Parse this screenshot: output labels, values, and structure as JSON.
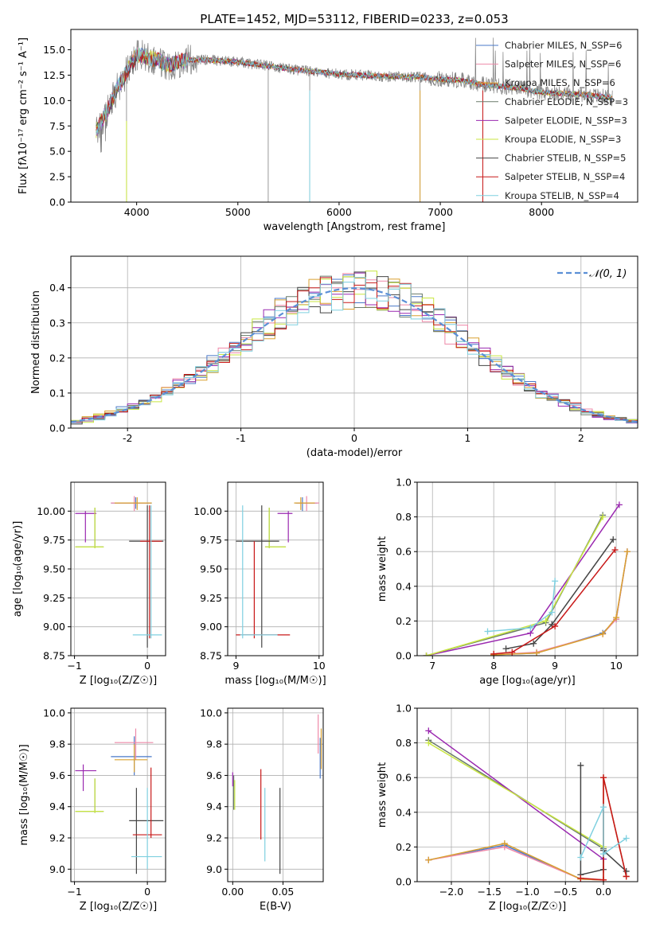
{
  "figure_title": "PLATE=1452, MJD=53112, FIBERID=0233, z=0.053",
  "colors": {
    "Chabrier MILES": "#4a78c8",
    "Salpeter MILES": "#ee88a8",
    "Kroupa MILES": "#d9a030",
    "Chabrier ELODIE": "#6a7a6a",
    "Salpeter ELODIE": "#9a28b0",
    "Kroupa ELODIE": "#c8e640",
    "Chabrier STELIB": "#444444",
    "Salpeter STELIB": "#c81818",
    "Kroupa STELIB": "#7fd0e0",
    "normal_fit": "#5b8fd6",
    "observed": "#808080"
  },
  "chart_data": [
    {
      "id": "spectrum",
      "type": "line",
      "title": "PLATE=1452, MJD=53112, FIBERID=0233, z=0.053",
      "xlabel": "wavelength [Angstrom, rest frame]",
      "ylabel": "Flux [fλ10⁻¹⁷ erg cm⁻² s⁻¹ A⁻¹]",
      "xlim": [
        3350,
        8950
      ],
      "ylim": [
        0,
        17
      ],
      "xticks": [
        4000,
        5000,
        6000,
        7000,
        8000
      ],
      "yticks": [
        0.0,
        2.5,
        5.0,
        7.5,
        10.0,
        12.5,
        15.0
      ],
      "ytick_labels": [
        "0.0",
        "2.5",
        "5.0",
        "7.5",
        "10.0",
        "12.5",
        "15.0"
      ],
      "grid": false,
      "legend_position": "top-right",
      "legend": [
        {
          "label": "Chabrier MILES, N_SSP=6",
          "model": "Chabrier MILES"
        },
        {
          "label": "Salpeter MILES, N_SSP=6",
          "model": "Salpeter MILES"
        },
        {
          "label": "Kroupa MILES, N_SSP=6",
          "model": "Kroupa MILES"
        },
        {
          "label": "Chabrier ELODIE, N_SSP=3",
          "model": "Chabrier ELODIE"
        },
        {
          "label": "Salpeter ELODIE, N_SSP=3",
          "model": "Salpeter ELODIE"
        },
        {
          "label": "Kroupa ELODIE, N_SSP=3",
          "model": "Kroupa ELODIE"
        },
        {
          "label": "Chabrier STELIB, N_SSP=5",
          "model": "Chabrier STELIB"
        },
        {
          "label": "Salpeter STELIB, N_SSP=4",
          "model": "Salpeter STELIB"
        },
        {
          "label": "Kroupa STELIB, N_SSP=4",
          "model": "Kroupa STELIB"
        }
      ],
      "continuum_x": [
        3600,
        3700,
        3800,
        3900,
        4000,
        4100,
        4200,
        4300,
        4500,
        4700,
        5000,
        5300,
        5600,
        6000,
        6400,
        6800,
        7000,
        7200,
        7400,
        7600,
        7800,
        8000,
        8200,
        8400,
        8600,
        8700
      ],
      "continuum_y": [
        7.0,
        8.8,
        11.0,
        12.8,
        14.5,
        14.3,
        14.0,
        13.5,
        14.0,
        14.0,
        13.8,
        13.4,
        13.0,
        12.6,
        12.4,
        12.3,
        12.1,
        12.0,
        11.6,
        11.4,
        11.2,
        10.8,
        10.7,
        10.6,
        10.4,
        10.2
      ]
    },
    {
      "id": "residuals",
      "type": "histogram",
      "xlabel": "(data-model)/error",
      "ylabel": "Normed distribution",
      "xlim": [
        -2.5,
        2.5
      ],
      "ylim": [
        0,
        0.49
      ],
      "xticks": [
        -2,
        -1,
        0,
        1,
        2
      ],
      "yticks": [
        0.0,
        0.1,
        0.2,
        0.3,
        0.4
      ],
      "ytick_labels": [
        "0.0",
        "0.1",
        "0.2",
        "0.3",
        "0.4"
      ],
      "grid": true,
      "legend_position": "top-right",
      "legend": [
        {
          "label": "𝒩(0, 1)"
        }
      ],
      "bin_width": 0.1
    },
    {
      "id": "age-vs-Z",
      "type": "errorbar",
      "xlabel": "Z [log₁₀(Z/Z☉)]",
      "ylabel": "age  [log₁₀(age/yr)]",
      "xlim": [
        -1.05,
        0.25
      ],
      "ylim": [
        8.75,
        10.25
      ],
      "xticks": [
        -1,
        0
      ],
      "xtick_labels": [
        "−1",
        "0"
      ],
      "yticks": [
        8.75,
        9.0,
        9.25,
        9.5,
        9.75,
        10.0
      ],
      "ytick_labels": [
        "8.75",
        "9.00",
        "9.25",
        "9.50",
        "9.75",
        "10.00"
      ],
      "grid": true,
      "points": [
        {
          "model": "Chabrier MILES",
          "x": -0.16,
          "xlo": -0.5,
          "xhi": 0.06,
          "y": 10.07,
          "ylo": 10.02,
          "yhi": 10.12
        },
        {
          "model": "Salpeter MILES",
          "x": -0.18,
          "xlo": -0.5,
          "xhi": 0.05,
          "y": 10.07,
          "ylo": 10.0,
          "yhi": 10.13
        },
        {
          "model": "Kroupa MILES",
          "x": -0.14,
          "xlo": -0.45,
          "xhi": 0.06,
          "y": 10.07,
          "ylo": 10.01,
          "yhi": 10.12
        },
        {
          "model": "Chabrier ELODIE",
          "x": -0.72,
          "xlo": -0.99,
          "xhi": -0.6,
          "y": 9.69,
          "ylo": 9.68,
          "yhi": 10.03
        },
        {
          "model": "Salpeter ELODIE",
          "x": -0.85,
          "xlo": -0.99,
          "xhi": -0.7,
          "y": 9.98,
          "ylo": 9.73,
          "yhi": 10.0
        },
        {
          "model": "Kroupa ELODIE",
          "x": -0.72,
          "xlo": -0.99,
          "xhi": -0.6,
          "y": 9.69,
          "ylo": 9.68,
          "yhi": 10.03
        },
        {
          "model": "Chabrier STELIB",
          "x": 0.0,
          "xlo": -0.25,
          "xhi": 0.22,
          "y": 9.74,
          "ylo": 8.82,
          "yhi": 10.05
        },
        {
          "model": "Salpeter STELIB",
          "x": 0.03,
          "xlo": -0.1,
          "xhi": 0.2,
          "y": 9.74,
          "ylo": 8.9,
          "yhi": 10.05
        },
        {
          "model": "Kroupa STELIB",
          "x": 0.05,
          "xlo": -0.2,
          "xhi": 0.2,
          "y": 8.93,
          "ylo": 8.9,
          "yhi": 10.05
        }
      ]
    },
    {
      "id": "age-vs-mass",
      "type": "errorbar",
      "xlabel": "mass [log₁₀(M/M☉)]",
      "ylabel": "",
      "xlim": [
        8.9,
        10.05
      ],
      "ylim": [
        8.75,
        10.25
      ],
      "xticks": [
        9,
        10
      ],
      "xtick_labels": [
        "9",
        "10"
      ],
      "yticks": [
        8.75,
        9.0,
        9.25,
        9.5,
        9.75,
        10.0
      ],
      "ytick_labels": [
        "8.75",
        "9.00",
        "9.25",
        "9.50",
        "9.75",
        "10.00"
      ],
      "grid": true,
      "points": [
        {
          "model": "Chabrier MILES",
          "x": 9.8,
          "xlo": 9.72,
          "xhi": 9.98,
          "y": 10.07,
          "ylo": 10.0,
          "yhi": 10.12
        },
        {
          "model": "Salpeter MILES",
          "x": 9.85,
          "xlo": 9.74,
          "xhi": 10.0,
          "y": 10.07,
          "ylo": 10.0,
          "yhi": 10.13
        },
        {
          "model": "Kroupa MILES",
          "x": 9.78,
          "xlo": 9.7,
          "xhi": 9.95,
          "y": 10.07,
          "ylo": 10.01,
          "yhi": 10.12
        },
        {
          "model": "Chabrier ELODIE",
          "x": 9.4,
          "xlo": 9.35,
          "xhi": 9.6,
          "y": 9.69,
          "ylo": 9.68,
          "yhi": 10.03
        },
        {
          "model": "Salpeter ELODIE",
          "x": 9.63,
          "xlo": 9.5,
          "xhi": 9.68,
          "y": 9.98,
          "ylo": 9.73,
          "yhi": 10.0
        },
        {
          "model": "Kroupa ELODIE",
          "x": 9.4,
          "xlo": 9.35,
          "xhi": 9.6,
          "y": 9.69,
          "ylo": 9.68,
          "yhi": 10.03
        },
        {
          "model": "Chabrier STELIB",
          "x": 9.31,
          "xlo": 9.0,
          "xhi": 9.52,
          "y": 9.74,
          "ylo": 8.82,
          "yhi": 10.05
        },
        {
          "model": "Salpeter STELIB",
          "x": 9.22,
          "xlo": 9.0,
          "xhi": 9.65,
          "y": 8.93,
          "ylo": 8.9,
          "yhi": 9.74
        },
        {
          "model": "Kroupa STELIB",
          "x": 9.08,
          "xlo": 9.05,
          "xhi": 9.5,
          "y": 8.93,
          "ylo": 8.9,
          "yhi": 10.05
        }
      ]
    },
    {
      "id": "massweight-vs-age",
      "type": "line",
      "xlabel": "age  [log₁₀(age/yr)]",
      "ylabel": "mass weight",
      "xlim": [
        6.75,
        10.35
      ],
      "ylim": [
        0,
        1
      ],
      "xticks": [
        7,
        8,
        9,
        10
      ],
      "yticks": [
        0.0,
        0.2,
        0.4,
        0.6,
        0.8,
        1.0
      ],
      "ytick_labels": [
        "0.0",
        "0.2",
        "0.4",
        "0.6",
        "0.8",
        "1.0"
      ],
      "grid": true,
      "series": [
        {
          "model": "Chabrier MILES",
          "x": [
            8.0,
            8.7,
            9.78,
            10.0,
            10.18
          ],
          "y": [
            0.005,
            0.015,
            0.13,
            0.21,
            0.6
          ]
        },
        {
          "model": "Salpeter MILES",
          "x": [
            8.0,
            8.7,
            9.78,
            10.0,
            10.18
          ],
          "y": [
            0.005,
            0.02,
            0.125,
            0.21,
            0.6
          ]
        },
        {
          "model": "Kroupa MILES",
          "x": [
            8.0,
            8.7,
            9.78,
            10.0,
            10.18
          ],
          "y": [
            0.005,
            0.015,
            0.125,
            0.22,
            0.6
          ]
        },
        {
          "model": "Chabrier ELODIE",
          "x": [
            6.9,
            8.85,
            9.78
          ],
          "y": [
            0.0,
            0.19,
            0.81
          ]
        },
        {
          "model": "Salpeter ELODIE",
          "x": [
            6.9,
            8.6,
            10.05
          ],
          "y": [
            0.0,
            0.13,
            0.87
          ]
        },
        {
          "model": "Kroupa ELODIE",
          "x": [
            6.9,
            8.85,
            9.78
          ],
          "y": [
            0.0,
            0.2,
            0.8
          ]
        },
        {
          "model": "Chabrier STELIB",
          "x": [
            8.2,
            8.65,
            8.95,
            9.95
          ],
          "y": [
            0.04,
            0.07,
            0.18,
            0.67
          ]
        },
        {
          "model": "Salpeter STELIB",
          "x": [
            8.0,
            8.3,
            9.0,
            9.98
          ],
          "y": [
            0.01,
            0.02,
            0.17,
            0.61
          ]
        },
        {
          "model": "Kroupa STELIB",
          "x": [
            7.9,
            8.6,
            8.95,
            9.0
          ],
          "y": [
            0.14,
            0.16,
            0.25,
            0.43
          ]
        }
      ]
    },
    {
      "id": "mass-vs-Z",
      "type": "errorbar",
      "xlabel": "Z [log₁₀(Z/Z☉)]",
      "ylabel": "mass [log₁₀(M/M☉)]",
      "xlim": [
        -1.05,
        0.25
      ],
      "ylim": [
        8.92,
        10.03
      ],
      "xticks": [
        -1,
        0
      ],
      "xtick_labels": [
        "−1",
        "0"
      ],
      "yticks": [
        9.0,
        9.2,
        9.4,
        9.6,
        9.8,
        10.0
      ],
      "ytick_labels": [
        "9.0",
        "9.2",
        "9.4",
        "9.6",
        "9.8",
        "10.0"
      ],
      "grid": true,
      "points": [
        {
          "model": "Chabrier MILES",
          "x": -0.18,
          "xlo": -0.5,
          "xhi": 0.06,
          "y": 9.72,
          "ylo": 9.6,
          "yhi": 9.85
        },
        {
          "model": "Salpeter MILES",
          "x": -0.16,
          "xlo": -0.45,
          "xhi": 0.08,
          "y": 9.81,
          "ylo": 9.7,
          "yhi": 9.9
        },
        {
          "model": "Kroupa MILES",
          "x": -0.18,
          "xlo": -0.45,
          "xhi": 0.0,
          "y": 9.7,
          "ylo": 9.62,
          "yhi": 9.8
        },
        {
          "model": "Chabrier ELODIE",
          "x": -0.72,
          "xlo": -0.99,
          "xhi": -0.6,
          "y": 9.37,
          "ylo": 9.36,
          "yhi": 9.58
        },
        {
          "model": "Salpeter ELODIE",
          "x": -0.88,
          "xlo": -0.99,
          "xhi": -0.7,
          "y": 9.63,
          "ylo": 9.5,
          "yhi": 9.67
        },
        {
          "model": "Kroupa ELODIE",
          "x": -0.72,
          "xlo": -0.99,
          "xhi": -0.6,
          "y": 9.37,
          "ylo": 9.36,
          "yhi": 9.58
        },
        {
          "model": "Chabrier STELIB",
          "x": -0.15,
          "xlo": -0.25,
          "xhi": 0.22,
          "y": 9.31,
          "ylo": 8.97,
          "yhi": 9.52
        },
        {
          "model": "Salpeter STELIB",
          "x": 0.05,
          "xlo": -0.2,
          "xhi": 0.2,
          "y": 9.22,
          "ylo": 9.2,
          "yhi": 9.65
        },
        {
          "model": "Kroupa STELIB",
          "x": 0.0,
          "xlo": -0.22,
          "xhi": 0.2,
          "y": 9.08,
          "ylo": 9.0,
          "yhi": 9.52
        }
      ]
    },
    {
      "id": "mass-vs-ebv",
      "type": "errorbar",
      "xlabel": "E(B-V)",
      "ylabel": "",
      "xlim": [
        -0.005,
        0.09
      ],
      "ylim": [
        8.92,
        10.03
      ],
      "xticks": [
        0.0,
        0.05
      ],
      "xtick_labels": [
        "0.00",
        "0.05"
      ],
      "yticks": [
        9.0,
        9.2,
        9.4,
        9.6,
        9.8,
        10.0
      ],
      "ytick_labels": [
        "9.0",
        "9.2",
        "9.4",
        "9.6",
        "9.8",
        "10.0"
      ],
      "grid": true,
      "points": [
        {
          "model": "Chabrier MILES",
          "x": 0.087,
          "xlo": 0.087,
          "xhi": 0.087,
          "y": 9.7,
          "ylo": 9.58,
          "yhi": 9.84
        },
        {
          "model": "Salpeter MILES",
          "x": 0.085,
          "xlo": 0.085,
          "xhi": 0.085,
          "y": 9.86,
          "ylo": 9.74,
          "yhi": 9.99
        },
        {
          "model": "Kroupa MILES",
          "x": 0.088,
          "xlo": 0.088,
          "xhi": 0.088,
          "y": 9.8,
          "ylo": 9.64,
          "yhi": 9.9
        },
        {
          "model": "Chabrier ELODIE",
          "x": 0.001,
          "xlo": 0.001,
          "xhi": 0.001,
          "y": 9.5,
          "ylo": 9.38,
          "yhi": 9.6
        },
        {
          "model": "Salpeter ELODIE",
          "x": 0.0,
          "xlo": 0.0,
          "xhi": 0.0,
          "y": 9.58,
          "ylo": 9.53,
          "yhi": 9.62
        },
        {
          "model": "Kroupa ELODIE",
          "x": 0.002,
          "xlo": 0.002,
          "xhi": 0.002,
          "y": 9.47,
          "ylo": 9.38,
          "yhi": 9.57
        },
        {
          "model": "Chabrier STELIB",
          "x": 0.047,
          "xlo": 0.047,
          "xhi": 0.047,
          "y": 9.25,
          "ylo": 8.97,
          "yhi": 9.52
        },
        {
          "model": "Salpeter STELIB",
          "x": 0.028,
          "xlo": 0.028,
          "xhi": 0.028,
          "y": 9.42,
          "ylo": 9.19,
          "yhi": 9.64
        },
        {
          "model": "Kroupa STELIB",
          "x": 0.032,
          "xlo": 0.032,
          "xhi": 0.032,
          "y": 9.28,
          "ylo": 9.05,
          "yhi": 9.52
        }
      ]
    },
    {
      "id": "massweight-vs-Z",
      "type": "line",
      "xlabel": "Z [log₁₀(Z/Z☉)]",
      "ylabel": "mass weight",
      "xlim": [
        -2.45,
        0.45
      ],
      "ylim": [
        0,
        1
      ],
      "xticks": [
        -2.0,
        -1.5,
        -1.0,
        -0.5,
        0.0
      ],
      "xtick_labels": [
        "−2.0",
        "−1.5",
        "−1.0",
        "−0.5",
        "0.0"
      ],
      "yticks": [
        0.0,
        0.2,
        0.4,
        0.6,
        0.8,
        1.0
      ],
      "ytick_labels": [
        "0.0",
        "0.2",
        "0.4",
        "0.6",
        "0.8",
        "1.0"
      ],
      "grid": true,
      "series": [
        {
          "model": "Chabrier MILES",
          "x": [
            -2.3,
            -1.3,
            -0.3,
            0.0,
            0.0,
            0.3
          ],
          "y": [
            0.125,
            0.21,
            0.015,
            0.01,
            0.6,
            0.03
          ]
        },
        {
          "model": "Salpeter MILES",
          "x": [
            -2.3,
            -1.3,
            -0.3,
            0.0,
            0.0,
            0.3
          ],
          "y": [
            0.125,
            0.2,
            0.015,
            0.01,
            0.6,
            0.03
          ]
        },
        {
          "model": "Kroupa MILES",
          "x": [
            -2.3,
            -1.3,
            -0.3,
            0.0,
            0.0,
            0.3
          ],
          "y": [
            0.125,
            0.22,
            0.015,
            0.01,
            0.6,
            0.03
          ]
        },
        {
          "model": "Chabrier ELODIE",
          "x": [
            -2.3,
            0.0
          ],
          "y": [
            0.815,
            0.19
          ]
        },
        {
          "model": "Salpeter ELODIE",
          "x": [
            -2.3,
            0.0
          ],
          "y": [
            0.87,
            0.13
          ]
        },
        {
          "model": "Kroupa ELODIE",
          "x": [
            -2.3,
            0.0
          ],
          "y": [
            0.8,
            0.2
          ]
        },
        {
          "model": "Chabrier STELIB",
          "x": [
            -0.3,
            -0.3,
            0.0,
            0.0,
            0.3
          ],
          "y": [
            0.67,
            0.04,
            0.07,
            0.18,
            0.06
          ]
        },
        {
          "model": "Salpeter STELIB",
          "x": [
            -0.3,
            0.0,
            0.0,
            0.3
          ],
          "y": [
            0.02,
            0.01,
            0.6,
            0.03
          ]
        },
        {
          "model": "Kroupa STELIB",
          "x": [
            -0.3,
            0.0,
            0.0,
            0.3
          ],
          "y": [
            0.14,
            0.43,
            0.16,
            0.25
          ]
        }
      ]
    }
  ]
}
